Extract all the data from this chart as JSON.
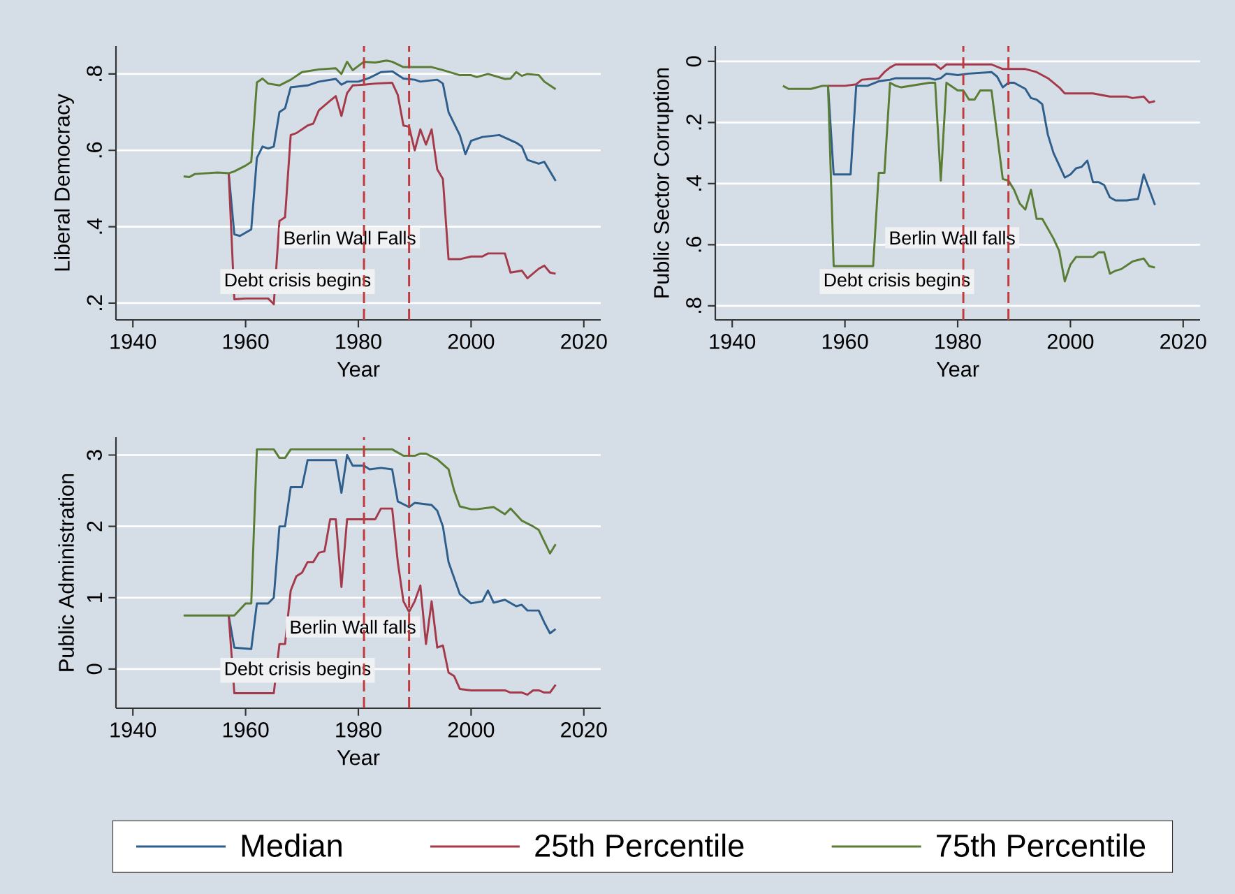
{
  "chart_data": [
    {
      "type": "line",
      "xlabel": "Year",
      "ylabel": "Liberal Democracy",
      "xlim": [
        1937,
        2023
      ],
      "xticks": [
        1940,
        1960,
        1980,
        2000,
        2020
      ],
      "ylim": [
        0.156,
        0.873
      ],
      "yticks": [
        {
          "value": 0.2,
          "label": ".2"
        },
        {
          "value": 0.4,
          "label": ".4"
        },
        {
          "value": 0.6,
          "label": ".6"
        },
        {
          "value": 0.8,
          "label": ".8"
        }
      ],
      "grid": "y",
      "legend": "bottom",
      "ref_lines": [
        {
          "axis": "x",
          "value": 1981,
          "label": "Debt crisis begins",
          "color": "#c0393b",
          "line_style": "dashed"
        },
        {
          "axis": "x",
          "value": 1989,
          "label": "Berlin Wall Falls",
          "color": "#c0393b",
          "line_style": "dashed"
        }
      ],
      "series": [
        {
          "name": "Median",
          "color": "#2e5e8b",
          "x": [
            1957,
            1958,
            1959,
            1961,
            1962,
            1963,
            1964,
            1965,
            1966,
            1967,
            1968,
            1971,
            1973,
            1976,
            1977,
            1978,
            1980,
            1982,
            1984,
            1986,
            1988,
            1990,
            1991,
            1994,
            1995,
            1996,
            1998,
            1999,
            2000,
            2002,
            2005,
            2008,
            2009,
            2010,
            2012,
            2013,
            2015
          ],
          "values": [
            0.54,
            0.38,
            0.376,
            0.393,
            0.58,
            0.61,
            0.605,
            0.61,
            0.7,
            0.71,
            0.765,
            0.77,
            0.78,
            0.787,
            0.772,
            0.78,
            0.78,
            0.79,
            0.805,
            0.807,
            0.788,
            0.785,
            0.78,
            0.785,
            0.775,
            0.7,
            0.64,
            0.59,
            0.625,
            0.635,
            0.64,
            0.62,
            0.61,
            0.575,
            0.565,
            0.57,
            0.52
          ]
        },
        {
          "name": "25th Percentile",
          "color": "#a4394a",
          "x": [
            1957,
            1958,
            1960,
            1964,
            1965,
            1966,
            1967,
            1968,
            1969,
            1971,
            1972,
            1973,
            1975,
            1976,
            1977,
            1978,
            1979,
            1981,
            1983,
            1986,
            1987,
            1988,
            1989,
            1990,
            1991,
            1992,
            1993,
            1994,
            1995,
            1996,
            1998,
            2000,
            2002,
            2003,
            2006,
            2007,
            2009,
            2010,
            2012,
            2013,
            2014,
            2015
          ],
          "values": [
            0.54,
            0.21,
            0.212,
            0.212,
            0.197,
            0.415,
            0.425,
            0.64,
            0.645,
            0.665,
            0.67,
            0.705,
            0.73,
            0.742,
            0.69,
            0.75,
            0.77,
            0.772,
            0.775,
            0.777,
            0.745,
            0.665,
            0.662,
            0.6,
            0.655,
            0.615,
            0.655,
            0.55,
            0.525,
            0.315,
            0.315,
            0.322,
            0.322,
            0.33,
            0.33,
            0.28,
            0.285,
            0.265,
            0.29,
            0.298,
            0.28,
            0.277
          ]
        },
        {
          "name": "75th Percentile",
          "color": "#5a7d36",
          "x": [
            1949,
            1950,
            1951,
            1955,
            1957,
            1958,
            1960,
            1961,
            1962,
            1963,
            1964,
            1966,
            1968,
            1970,
            1973,
            1976,
            1977,
            1978,
            1979,
            1981,
            1983,
            1985,
            1986,
            1988,
            1990,
            1993,
            1995,
            1998,
            2000,
            2001,
            2003,
            2006,
            2007,
            2008,
            2009,
            2010,
            2012,
            2013,
            2015
          ],
          "values": [
            0.532,
            0.53,
            0.538,
            0.542,
            0.54,
            0.545,
            0.56,
            0.57,
            0.778,
            0.788,
            0.775,
            0.77,
            0.785,
            0.805,
            0.812,
            0.815,
            0.8,
            0.832,
            0.81,
            0.832,
            0.83,
            0.835,
            0.832,
            0.818,
            0.818,
            0.818,
            0.81,
            0.797,
            0.797,
            0.792,
            0.8,
            0.787,
            0.788,
            0.805,
            0.795,
            0.8,
            0.797,
            0.78,
            0.76
          ]
        }
      ]
    },
    {
      "type": "line",
      "xlabel": "Year",
      "ylabel": "Public Sector Corruption",
      "xlim": [
        1937,
        2023
      ],
      "xticks": [
        1940,
        1960,
        1980,
        2000,
        2020
      ],
      "ylim": [
        0.846,
        -0.05
      ],
      "yticks": [
        0,
        {
          "value": 0.2,
          "label": ".2"
        },
        {
          "value": 0.4,
          "label": ".4"
        },
        {
          "value": 0.6,
          "label": ".6"
        },
        {
          "value": 0.8,
          "label": ".8"
        }
      ],
      "grid": "y",
      "ref_lines": [
        {
          "axis": "x",
          "value": 1981,
          "label": "Debt crisis begins",
          "color": "#c0393b",
          "line_style": "dashed"
        },
        {
          "axis": "x",
          "value": 1989,
          "label": "Berlin Wall falls",
          "color": "#c0393b",
          "line_style": "dashed"
        }
      ],
      "series": [
        {
          "color": "#2e5e8b",
          "x": [
            1957,
            1958,
            1961,
            1962,
            1964,
            1966,
            1968,
            1969,
            1975,
            1976,
            1977,
            1978,
            1980,
            1982,
            1986,
            1987,
            1988,
            1989,
            1990,
            1992,
            1993,
            1994,
            1995,
            1996,
            1997,
            1999,
            2000,
            2001,
            2002,
            2003,
            2004,
            2005,
            2006,
            2007,
            2008,
            2010,
            2012,
            2013,
            2015
          ],
          "values": [
            0.08,
            0.37,
            0.37,
            0.08,
            0.08,
            0.065,
            0.06,
            0.055,
            0.055,
            0.06,
            0.055,
            0.04,
            0.045,
            0.04,
            0.035,
            0.05,
            0.085,
            0.07,
            0.07,
            0.09,
            0.12,
            0.125,
            0.14,
            0.24,
            0.3,
            0.38,
            0.37,
            0.35,
            0.345,
            0.325,
            0.395,
            0.395,
            0.405,
            0.445,
            0.455,
            0.455,
            0.45,
            0.37,
            0.47
          ]
        },
        {
          "color": "#a4394a",
          "x": [
            1957,
            1960,
            1962,
            1963,
            1966,
            1967,
            1968,
            1969,
            1976,
            1977,
            1978,
            1986,
            1988,
            1992,
            1994,
            1996,
            1998,
            1999,
            2004,
            2007,
            2010,
            2011,
            2013,
            2014,
            2015
          ],
          "values": [
            0.08,
            0.08,
            0.075,
            0.06,
            0.055,
            0.035,
            0.02,
            0.01,
            0.01,
            0.025,
            0.01,
            0.01,
            0.025,
            0.025,
            0.035,
            0.055,
            0.085,
            0.105,
            0.105,
            0.115,
            0.115,
            0.12,
            0.115,
            0.135,
            0.13
          ]
        },
        {
          "color": "#5a7d36",
          "x": [
            1949,
            1950,
            1954,
            1956,
            1957,
            1958,
            1965,
            1966,
            1967,
            1968,
            1969,
            1970,
            1975,
            1976,
            1977,
            1978,
            1980,
            1981,
            1982,
            1983,
            1984,
            1986,
            1988,
            1989,
            1990,
            1991,
            1992,
            1993,
            1994,
            1995,
            1997,
            1998,
            1999,
            2000,
            2001,
            2004,
            2005,
            2006,
            2007,
            2008,
            2009,
            2011,
            2012,
            2013,
            2014,
            2015
          ],
          "values": [
            0.08,
            0.09,
            0.09,
            0.08,
            0.08,
            0.67,
            0.67,
            0.365,
            0.365,
            0.07,
            0.08,
            0.085,
            0.07,
            0.07,
            0.39,
            0.07,
            0.095,
            0.095,
            0.125,
            0.125,
            0.095,
            0.095,
            0.385,
            0.39,
            0.42,
            0.465,
            0.485,
            0.42,
            0.515,
            0.515,
            0.58,
            0.62,
            0.72,
            0.665,
            0.64,
            0.64,
            0.625,
            0.625,
            0.695,
            0.685,
            0.68,
            0.655,
            0.65,
            0.645,
            0.67,
            0.675
          ]
        }
      ]
    },
    {
      "type": "line",
      "xlabel": "Year",
      "ylabel": "Public Administration",
      "xlim": [
        1937,
        2023
      ],
      "xticks": [
        1940,
        1960,
        1980,
        2000,
        2020
      ],
      "ylim": [
        -0.55,
        3.25
      ],
      "yticks": [
        0,
        1,
        2,
        3
      ],
      "grid": "y",
      "ref_lines": [
        {
          "axis": "x",
          "value": 1981,
          "label": "Debt crisis begins",
          "color": "#c0393b",
          "line_style": "dashed"
        },
        {
          "axis": "x",
          "value": 1989,
          "label": "Berlin Wall falls",
          "color": "#c0393b",
          "line_style": "dashed"
        }
      ],
      "series": [
        {
          "color": "#2e5e8b",
          "x": [
            1957,
            1958,
            1961,
            1962,
            1964,
            1965,
            1966,
            1967,
            1968,
            1970,
            1971,
            1976,
            1977,
            1978,
            1979,
            1981,
            1982,
            1984,
            1986,
            1987,
            1989,
            1990,
            1993,
            1994,
            1995,
            1996,
            1998,
            2000,
            2002,
            2003,
            2004,
            2006,
            2008,
            2009,
            2010,
            2012,
            2013,
            2014,
            2015
          ],
          "values": [
            0.75,
            0.3,
            0.28,
            0.92,
            0.92,
            1.0,
            2.0,
            2.0,
            2.55,
            2.55,
            2.93,
            2.93,
            2.47,
            3.0,
            2.85,
            2.85,
            2.8,
            2.82,
            2.8,
            2.35,
            2.27,
            2.33,
            2.3,
            2.22,
            2.0,
            1.5,
            1.05,
            0.92,
            0.95,
            1.1,
            0.93,
            0.97,
            0.88,
            0.9,
            0.82,
            0.82,
            0.65,
            0.5,
            0.56
          ]
        },
        {
          "color": "#a4394a",
          "x": [
            1957,
            1958,
            1965,
            1966,
            1967,
            1968,
            1969,
            1970,
            1971,
            1972,
            1973,
            1974,
            1975,
            1976,
            1977,
            1978,
            1979,
            1983,
            1984,
            1986,
            1987,
            1988,
            1989,
            1990,
            1991,
            1992,
            1993,
            1994,
            1995,
            1996,
            1997,
            1998,
            2000,
            2006,
            2007,
            2009,
            2010,
            2011,
            2012,
            2013,
            2014,
            2015
          ],
          "values": [
            0.75,
            -0.34,
            -0.34,
            0.35,
            0.35,
            1.1,
            1.3,
            1.35,
            1.5,
            1.5,
            1.63,
            1.65,
            2.1,
            2.1,
            1.15,
            2.1,
            2.1,
            2.1,
            2.25,
            2.25,
            1.5,
            0.95,
            0.8,
            0.95,
            1.17,
            0.35,
            0.95,
            0.3,
            0.33,
            -0.05,
            -0.1,
            -0.28,
            -0.3,
            -0.3,
            -0.33,
            -0.33,
            -0.36,
            -0.3,
            -0.3,
            -0.33,
            -0.33,
            -0.22
          ]
        },
        {
          "color": "#5a7d36",
          "x": [
            1949,
            1957,
            1958,
            1960,
            1961,
            1962,
            1965,
            1966,
            1967,
            1968,
            1981,
            1986,
            1988,
            1990,
            1991,
            1992,
            1994,
            1996,
            1997,
            1998,
            2000,
            2001,
            2004,
            2006,
            2007,
            2009,
            2011,
            2012,
            2014,
            2015
          ],
          "values": [
            0.75,
            0.75,
            0.75,
            0.92,
            0.92,
            3.08,
            3.08,
            2.96,
            2.96,
            3.08,
            3.08,
            3.08,
            2.99,
            2.99,
            3.02,
            3.02,
            2.94,
            2.8,
            2.5,
            2.28,
            2.24,
            2.24,
            2.27,
            2.17,
            2.25,
            2.08,
            2.0,
            1.95,
            1.62,
            1.75
          ]
        }
      ]
    }
  ]
}
